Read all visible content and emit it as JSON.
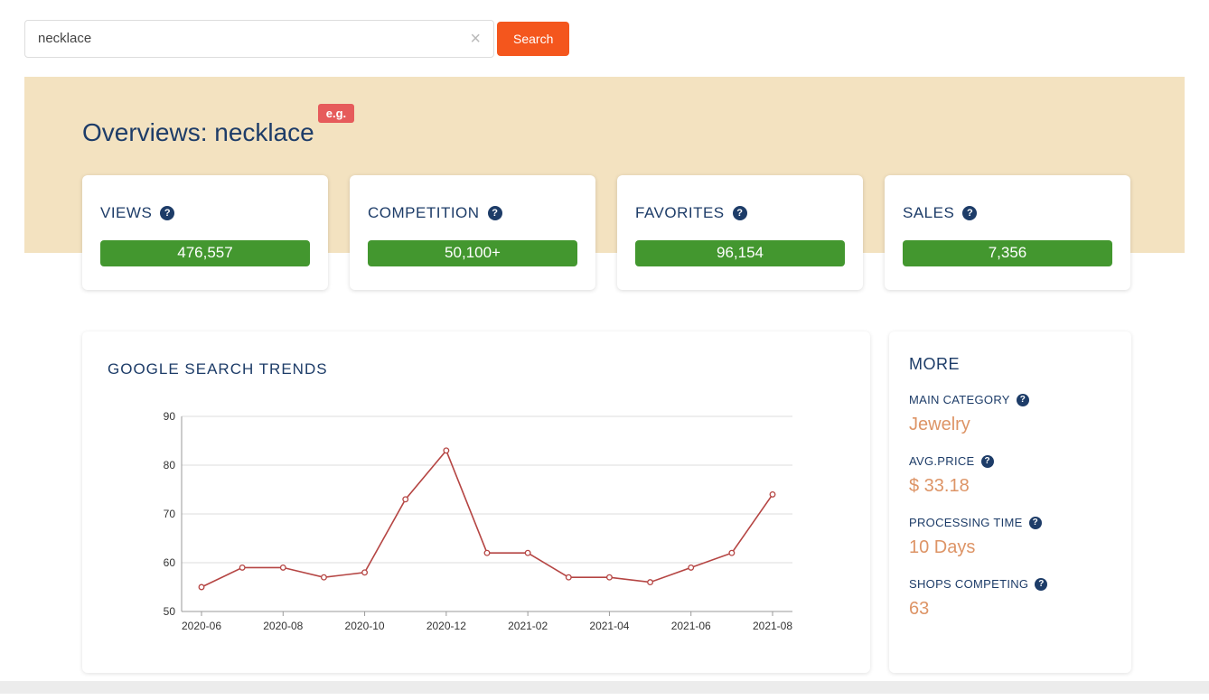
{
  "colors": {
    "navy": "#1d3c68",
    "accent_orange": "#f4561d",
    "green": "#43972f",
    "banner": "#f3e2c0",
    "badge_red": "#e65b5b",
    "value_orange": "#dd9466"
  },
  "icons": {
    "help": "?",
    "clear": "×"
  },
  "search": {
    "value": "necklace",
    "button_label": "Search"
  },
  "banner": {
    "title": "Overviews: necklace",
    "badge": "e.g."
  },
  "stats": [
    {
      "label": "VIEWS",
      "value": "476,557"
    },
    {
      "label": "COMPETITION",
      "value": "50,100+"
    },
    {
      "label": "FAVORITES",
      "value": "96,154"
    },
    {
      "label": "SALES",
      "value": "7,356"
    }
  ],
  "trends": {
    "title": "GOOGLE SEARCH TRENDS"
  },
  "chart_data": {
    "type": "line",
    "title": "GOOGLE SEARCH TRENDS",
    "x": [
      "2020-06",
      "2020-07",
      "2020-08",
      "2020-09",
      "2020-10",
      "2020-11",
      "2020-12",
      "2021-01",
      "2021-02",
      "2021-03",
      "2021-04",
      "2021-05",
      "2021-06",
      "2021-07",
      "2021-08"
    ],
    "values": [
      55,
      59,
      59,
      57,
      58,
      73,
      83,
      62,
      62,
      57,
      57,
      56,
      59,
      62,
      74
    ],
    "xtick_labels": [
      "2020-06",
      "2020-08",
      "2020-10",
      "2020-12",
      "2021-02",
      "2021-04",
      "2021-06",
      "2021-08"
    ],
    "ylim": [
      50,
      90
    ],
    "yticks": [
      50,
      60,
      70,
      80,
      90
    ],
    "grid": true,
    "legend": false,
    "line_color": "#b54543",
    "marker": "open-circle"
  },
  "more": {
    "title": "MORE",
    "items": [
      {
        "label": "MAIN CATEGORY",
        "value": "Jewelry"
      },
      {
        "label": "AVG.PRICE",
        "value": "$ 33.18"
      },
      {
        "label": "PROCESSING TIME",
        "value": "10 Days"
      },
      {
        "label": "SHOPS COMPETING",
        "value": "63"
      }
    ]
  }
}
